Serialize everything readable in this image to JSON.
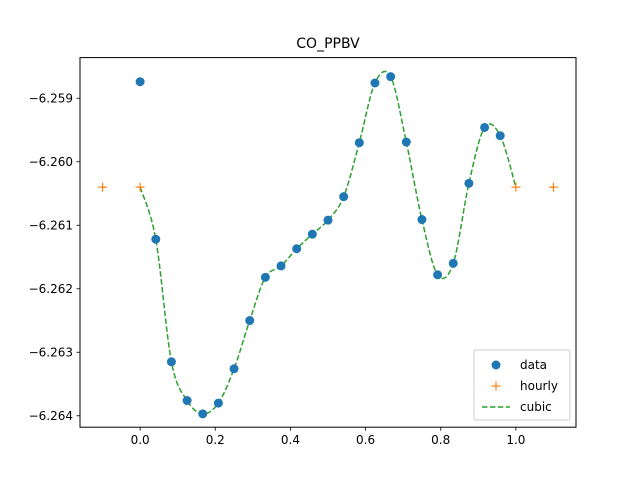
{
  "chart_data": {
    "type": "line",
    "title": "CO_PPBV",
    "xlabel": "",
    "ylabel": "",
    "xlim": [
      -0.16,
      1.16
    ],
    "ylim": [
      -6.26418,
      -6.25836
    ],
    "xticks": [
      0.0,
      0.2,
      0.4,
      0.6,
      0.8,
      1.0
    ],
    "xtick_labels": [
      "0.0",
      "0.2",
      "0.4",
      "0.6",
      "0.8",
      "1.0"
    ],
    "yticks": [
      -6.264,
      -6.263,
      -6.262,
      -6.261,
      -6.26,
      -6.259
    ],
    "ytick_labels": [
      "−6.264",
      "−6.263",
      "−6.262",
      "−6.261",
      "−6.260",
      "−6.259"
    ],
    "legend_position": "lower-right",
    "series": [
      {
        "name": "data",
        "style": "markers-circle",
        "color": "#1f77b4",
        "x": [
          0.0,
          0.0417,
          0.0833,
          0.125,
          0.1667,
          0.2083,
          0.25,
          0.2917,
          0.3333,
          0.375,
          0.4167,
          0.4583,
          0.5,
          0.5417,
          0.5833,
          0.625,
          0.6667,
          0.7083,
          0.75,
          0.7917,
          0.8333,
          0.875,
          0.9167,
          0.9583
        ],
        "y": [
          -6.25874,
          -6.26122,
          -6.26315,
          -6.26376,
          -6.26397,
          -6.2638,
          -6.26326,
          -6.2625,
          -6.26182,
          -6.26164,
          -6.26137,
          -6.26114,
          -6.26092,
          -6.26055,
          -6.2597,
          -6.25876,
          -6.25866,
          -6.25969,
          -6.26091,
          -6.26178,
          -6.2616,
          -6.26034,
          -6.25946,
          -6.25959
        ]
      },
      {
        "name": "hourly",
        "style": "markers-plus",
        "color": "#ff7f0e",
        "x": [
          -0.1,
          0.0,
          1.0,
          1.1
        ],
        "y": [
          -6.2604,
          -6.2604,
          -6.2604,
          -6.2604
        ]
      },
      {
        "name": "cubic",
        "style": "dashed-line",
        "color": "#2ca02c",
        "x": [
          0.0,
          0.0417,
          0.0833,
          0.125,
          0.1667,
          0.2083,
          0.25,
          0.2917,
          0.3333,
          0.375,
          0.4167,
          0.4583,
          0.5,
          0.5417,
          0.5833,
          0.625,
          0.6667,
          0.7083,
          0.75,
          0.7917,
          0.8333,
          0.875,
          0.9167,
          0.9583,
          1.0
        ],
        "y": [
          -6.2604,
          -6.26122,
          -6.26315,
          -6.26376,
          -6.26397,
          -6.2638,
          -6.26326,
          -6.2625,
          -6.26182,
          -6.26164,
          -6.26137,
          -6.26114,
          -6.26092,
          -6.26055,
          -6.2597,
          -6.25876,
          -6.25866,
          -6.25969,
          -6.26091,
          -6.26178,
          -6.2616,
          -6.26034,
          -6.25946,
          -6.25959,
          -6.2604
        ]
      }
    ]
  }
}
